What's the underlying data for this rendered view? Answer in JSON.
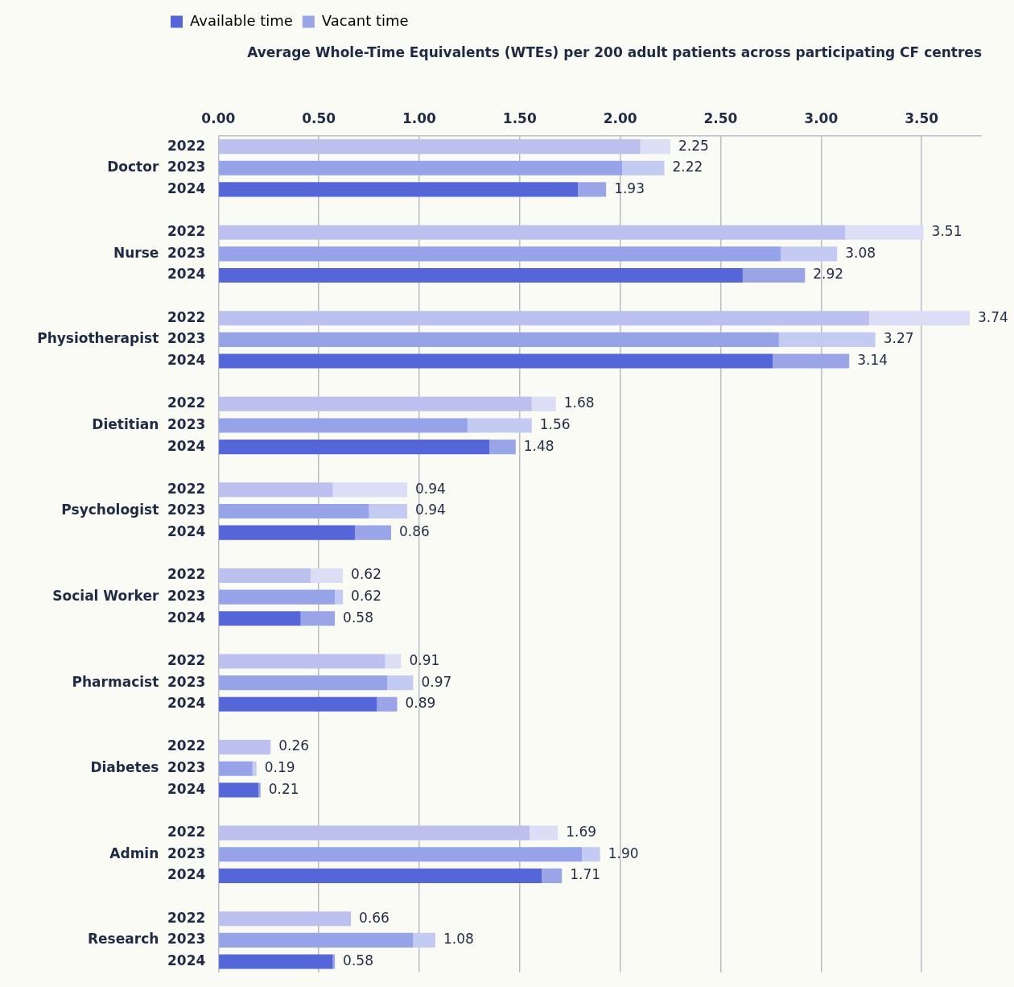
{
  "chart_data": {
    "type": "bar",
    "orientation": "horizontal",
    "stacked": true,
    "title": "Average Whole-Time Equivalents (WTEs) per 200 adult patients across participating CF centres",
    "categories": [
      "2022",
      "2023",
      "2024",
      null,
      "2022",
      "2023",
      "2024",
      null,
      "2022",
      "2023",
      "2024",
      null,
      "2022",
      "2023",
      "2024",
      null,
      "2022",
      "2023",
      "2024",
      null,
      "2022",
      "2023",
      "2024",
      null,
      "2022",
      "2023",
      "2024",
      null,
      "2022",
      "2023",
      "2024",
      null,
      "2022",
      "2023",
      "2024",
      null,
      "2022",
      "2023",
      "2024"
    ],
    "annotations": [
      "Doctor",
      "Nurse",
      "Physiotherapist",
      "Dietitian",
      "Psychologist",
      "Social Worker",
      "Pharmacist",
      "Diabetes",
      "Admin",
      "Research"
    ],
    "series": [
      {
        "name": "Available time",
        "color": "#5567d8",
        "colors": [
          "#bcc0ee",
          "#97a3e8",
          "#5567d8",
          null,
          "#bcc0ee",
          "#97a3e8",
          "#5567d8",
          null,
          "#bcc0ee",
          "#97a3e8",
          "#5567d8",
          null,
          "#bcc0ee",
          "#97a3e8",
          "#5567d8",
          null,
          "#bcc0ee",
          "#97a3e8",
          "#5567d8",
          null,
          "#bcc0ee",
          "#97a3e8",
          "#5567d8",
          null,
          "#bcc0ee",
          "#97a3e8",
          "#5567d8",
          null,
          "#bcc0ee",
          "#97a3e8",
          "#5567d8",
          null,
          "#bcc0ee",
          "#97a3e8",
          "#5567d8",
          null,
          "#bcc0ee",
          "#97a3e8",
          "#5567d8"
        ],
        "values": [
          2.1,
          2.01,
          1.79,
          null,
          3.12,
          2.8,
          2.61,
          null,
          3.24,
          2.79,
          2.76,
          null,
          1.56,
          1.24,
          1.35,
          null,
          0.57,
          0.75,
          0.68,
          null,
          0.46,
          0.58,
          0.41,
          null,
          0.83,
          0.84,
          0.79,
          null,
          0.26,
          0.17,
          0.2,
          null,
          1.55,
          1.81,
          1.61,
          null,
          0.66,
          0.97,
          0.57
        ]
      },
      {
        "name": "Vacant time",
        "color": "#9aa5e8",
        "colors": [
          "#dcdef6",
          "#c4cbf2",
          "#9aa5e8",
          null,
          "#dcdef6",
          "#c4cbf2",
          "#9aa5e8",
          null,
          "#dcdef6",
          "#c4cbf2",
          "#9aa5e8",
          null,
          "#dcdef6",
          "#c4cbf2",
          "#9aa5e8",
          null,
          "#dcdef6",
          "#c4cbf2",
          "#9aa5e8",
          null,
          "#dcdef6",
          "#c4cbf2",
          "#9aa5e8",
          null,
          "#dcdef6",
          "#c4cbf2",
          "#9aa5e8",
          null,
          "#dcdef6",
          "#c4cbf2",
          "#9aa5e8",
          null,
          "#dcdef6",
          "#c4cbf2",
          "#9aa5e8",
          null,
          "#dcdef6",
          "#c4cbf2",
          "#9aa5e8"
        ],
        "values": [
          0.15,
          0.21,
          0.14,
          null,
          0.39,
          0.28,
          0.31,
          null,
          0.5,
          0.48,
          0.38,
          null,
          0.12,
          0.32,
          0.13,
          null,
          0.37,
          0.19,
          0.18,
          null,
          0.16,
          0.04,
          0.17,
          null,
          0.08,
          0.13,
          0.1,
          null,
          0,
          0.02,
          0.01,
          null,
          0.14,
          0.09,
          0.1,
          null,
          0,
          0.11,
          0.01
        ]
      }
    ],
    "totals": [
      "2.25",
      "2.22",
      "1.93",
      null,
      "3.51",
      "3.08",
      "2.92",
      null,
      "3.74",
      "3.27",
      "3.14",
      null,
      "1.68",
      "1.56",
      "1.48",
      null,
      "0.94",
      "0.94",
      "0.86",
      null,
      "0.62",
      "0.62",
      "0.58",
      null,
      "0.91",
      "0.97",
      "0.89",
      null,
      "0.26",
      "0.19",
      "0.21",
      null,
      "1.69",
      "1.90",
      "1.71",
      null,
      "0.66",
      "1.08",
      "0.58"
    ],
    "xlim": [
      0,
      3.8
    ],
    "xticks": [
      {
        "value": 0,
        "label": "0.00"
      },
      {
        "value": 0.5,
        "label": "0.50"
      },
      {
        "value": 1,
        "label": "1.00"
      },
      {
        "value": 1.5,
        "label": "1.50"
      },
      {
        "value": 2,
        "label": "2.00"
      },
      {
        "value": 2.5,
        "label": "2.50"
      },
      {
        "value": 3,
        "label": "3.00"
      },
      {
        "value": 3.5,
        "label": "3.50"
      }
    ],
    "grid": "x",
    "legend": "top"
  }
}
